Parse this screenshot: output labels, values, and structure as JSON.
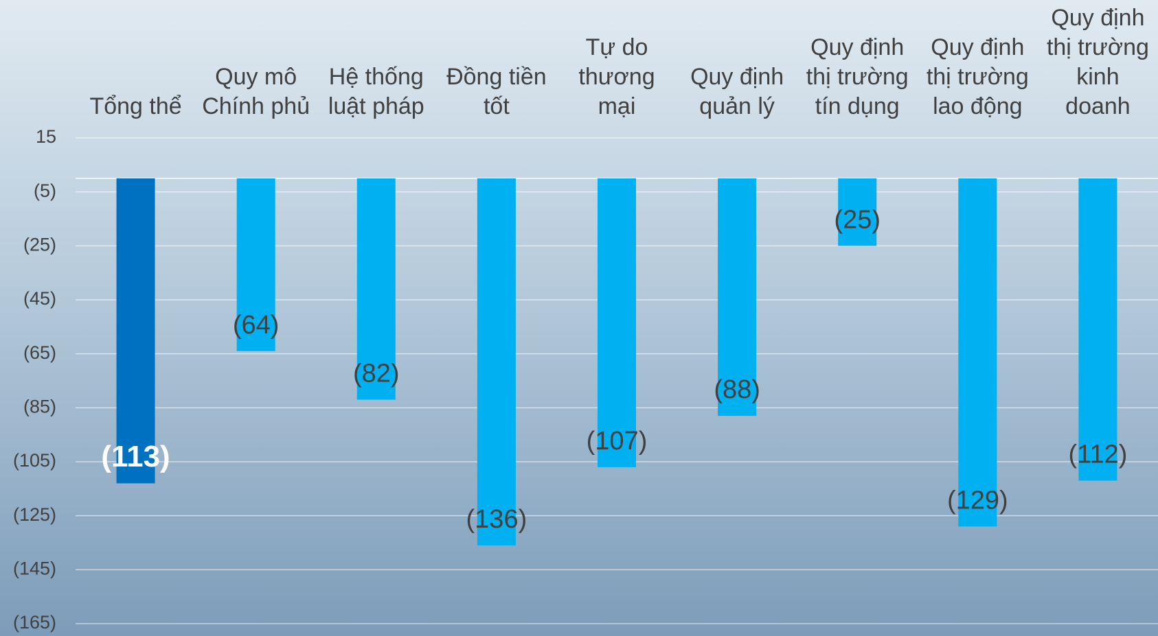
{
  "chart_data": {
    "type": "bar",
    "categories": [
      "Tổng thể",
      "Quy mô\nChính phủ",
      "Hệ thống\nluật pháp",
      "Đồng tiền\ntốt",
      "Tự do\nthương\nmại",
      "Quy định\nquản lý",
      "Quy định\nthị trường\ntín dụng",
      "Quy định\nthị trường\nlao động",
      "Quy định\nthị trường\nkinh\ndoanh"
    ],
    "values": [
      -113,
      -64,
      -82,
      -136,
      -107,
      -88,
      -25,
      -129,
      -112
    ],
    "value_labels": [
      "(113)",
      "(64)",
      "(82)",
      "(136)",
      "(107)",
      "(88)",
      "(25)",
      "(129)",
      "(112)"
    ],
    "colors": [
      "#0070c0",
      "#00b0f0",
      "#00b0f0",
      "#00b0f0",
      "#00b0f0",
      "#00b0f0",
      "#00b0f0",
      "#00b0f0",
      "#00b0f0"
    ],
    "value_label_colors": [
      "#ffffff",
      "#404040",
      "#404040",
      "#404040",
      "#404040",
      "#404040",
      "#404040",
      "#404040",
      "#404040"
    ],
    "ylim": [
      15,
      -165
    ],
    "yticks": [
      15,
      {
        "value": -5,
        "label": "(5)"
      },
      {
        "value": -25,
        "label": "(25)"
      },
      {
        "value": -45,
        "label": "(45)"
      },
      {
        "value": -65,
        "label": "(65)"
      },
      {
        "value": -85,
        "label": "(85)"
      },
      {
        "value": -105,
        "label": "(105)"
      },
      {
        "value": -125,
        "label": "(125)"
      },
      {
        "value": -145,
        "label": "(145)"
      },
      {
        "value": -165,
        "label": "(165)"
      }
    ],
    "grid": true
  }
}
